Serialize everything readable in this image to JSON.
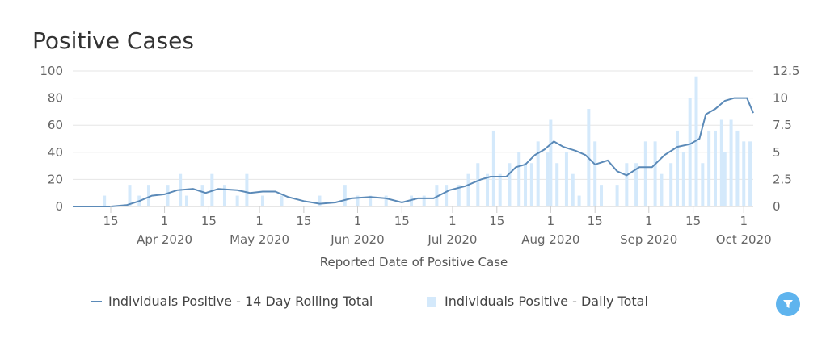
{
  "title": "Positive Cases",
  "legend": {
    "line_label": "Individuals Positive - 14 Day Rolling Total",
    "bar_label": "Individuals Positive - Daily Total"
  },
  "filter_icon": "filter-icon",
  "colors": {
    "line": "#5b8ab8",
    "bars": "#d4e9fb",
    "filter_button": "#5fb4ee"
  },
  "chart_data": {
    "type": "line+bar",
    "xlabel": "Reported Date of Positive Case",
    "x_ticks": [
      {
        "date": "2020-03-15",
        "label": "15",
        "sub": ""
      },
      {
        "date": "2020-04-01",
        "label": "1",
        "sub": "Apr 2020"
      },
      {
        "date": "2020-04-15",
        "label": "15",
        "sub": ""
      },
      {
        "date": "2020-05-01",
        "label": "1",
        "sub": "May 2020"
      },
      {
        "date": "2020-05-15",
        "label": "15",
        "sub": ""
      },
      {
        "date": "2020-06-01",
        "label": "1",
        "sub": "Jun 2020"
      },
      {
        "date": "2020-06-15",
        "label": "15",
        "sub": ""
      },
      {
        "date": "2020-07-01",
        "label": "1",
        "sub": "Jul 2020"
      },
      {
        "date": "2020-07-15",
        "label": "15",
        "sub": ""
      },
      {
        "date": "2020-08-01",
        "label": "1",
        "sub": "Aug 2020"
      },
      {
        "date": "2020-08-15",
        "label": "15",
        "sub": ""
      },
      {
        "date": "2020-09-01",
        "label": "1",
        "sub": "Sep 2020"
      },
      {
        "date": "2020-09-15",
        "label": "15",
        "sub": ""
      },
      {
        "date": "2020-10-01",
        "label": "1",
        "sub": "Oct 2020"
      }
    ],
    "xlim": [
      "2020-03-03",
      "2020-10-04"
    ],
    "y_left": {
      "ylim": [
        0,
        100
      ],
      "ticks": [
        "0",
        "20",
        "40",
        "60",
        "80",
        "100"
      ]
    },
    "y_right": {
      "ylim": [
        0,
        12.5
      ],
      "ticks": [
        "0",
        "2.5",
        "5",
        "7.5",
        "10",
        "12.5"
      ]
    },
    "grid": true,
    "legend_position": "bottom",
    "series": [
      {
        "name": "Individuals Positive - 14 Day Rolling Total",
        "type": "line",
        "axis": "left",
        "points": [
          [
            "2020-03-03",
            0
          ],
          [
            "2020-03-15",
            0
          ],
          [
            "2020-03-20",
            1
          ],
          [
            "2020-03-24",
            4
          ],
          [
            "2020-03-28",
            8
          ],
          [
            "2020-04-01",
            9
          ],
          [
            "2020-04-05",
            12
          ],
          [
            "2020-04-10",
            13
          ],
          [
            "2020-04-14",
            10
          ],
          [
            "2020-04-18",
            13
          ],
          [
            "2020-04-24",
            12
          ],
          [
            "2020-04-28",
            10
          ],
          [
            "2020-05-02",
            11
          ],
          [
            "2020-05-06",
            11
          ],
          [
            "2020-05-10",
            7
          ],
          [
            "2020-05-15",
            4
          ],
          [
            "2020-05-20",
            2
          ],
          [
            "2020-05-25",
            3
          ],
          [
            "2020-05-30",
            6
          ],
          [
            "2020-06-05",
            7
          ],
          [
            "2020-06-10",
            6
          ],
          [
            "2020-06-15",
            3
          ],
          [
            "2020-06-20",
            6
          ],
          [
            "2020-06-25",
            6
          ],
          [
            "2020-06-30",
            12
          ],
          [
            "2020-07-05",
            15
          ],
          [
            "2020-07-10",
            20
          ],
          [
            "2020-07-13",
            22
          ],
          [
            "2020-07-18",
            22
          ],
          [
            "2020-07-21",
            29
          ],
          [
            "2020-07-24",
            31
          ],
          [
            "2020-07-27",
            38
          ],
          [
            "2020-07-30",
            42
          ],
          [
            "2020-08-02",
            48
          ],
          [
            "2020-08-05",
            44
          ],
          [
            "2020-08-09",
            41
          ],
          [
            "2020-08-12",
            38
          ],
          [
            "2020-08-15",
            31
          ],
          [
            "2020-08-19",
            34
          ],
          [
            "2020-08-22",
            26
          ],
          [
            "2020-08-25",
            23
          ],
          [
            "2020-08-29",
            29
          ],
          [
            "2020-09-02",
            29
          ],
          [
            "2020-09-06",
            38
          ],
          [
            "2020-09-10",
            44
          ],
          [
            "2020-09-14",
            46
          ],
          [
            "2020-09-17",
            50
          ],
          [
            "2020-09-19",
            68
          ],
          [
            "2020-09-22",
            72
          ],
          [
            "2020-09-25",
            78
          ],
          [
            "2020-09-28",
            80
          ],
          [
            "2020-10-02",
            80
          ],
          [
            "2020-10-04",
            69
          ]
        ]
      },
      {
        "name": "Individuals Positive - Daily Total",
        "type": "bar",
        "axis": "right",
        "points": [
          [
            "2020-03-13",
            1
          ],
          [
            "2020-03-21",
            2
          ],
          [
            "2020-03-24",
            1
          ],
          [
            "2020-03-27",
            2
          ],
          [
            "2020-04-02",
            2
          ],
          [
            "2020-04-06",
            3
          ],
          [
            "2020-04-08",
            1
          ],
          [
            "2020-04-13",
            2
          ],
          [
            "2020-04-16",
            3
          ],
          [
            "2020-04-20",
            2
          ],
          [
            "2020-04-24",
            1
          ],
          [
            "2020-04-27",
            3
          ],
          [
            "2020-05-02",
            1
          ],
          [
            "2020-05-08",
            1
          ],
          [
            "2020-05-20",
            1
          ],
          [
            "2020-05-28",
            2
          ],
          [
            "2020-06-01",
            1
          ],
          [
            "2020-06-05",
            1
          ],
          [
            "2020-06-10",
            1
          ],
          [
            "2020-06-18",
            1
          ],
          [
            "2020-06-22",
            1
          ],
          [
            "2020-06-26",
            2
          ],
          [
            "2020-06-29",
            2
          ],
          [
            "2020-07-03",
            2
          ],
          [
            "2020-07-06",
            3
          ],
          [
            "2020-07-09",
            4
          ],
          [
            "2020-07-12",
            3
          ],
          [
            "2020-07-14",
            7
          ],
          [
            "2020-07-16",
            3
          ],
          [
            "2020-07-19",
            4
          ],
          [
            "2020-07-22",
            5
          ],
          [
            "2020-07-24",
            4
          ],
          [
            "2020-07-26",
            4
          ],
          [
            "2020-07-28",
            6
          ],
          [
            "2020-07-31",
            5
          ],
          [
            "2020-08-01",
            8
          ],
          [
            "2020-08-03",
            4
          ],
          [
            "2020-08-06",
            5
          ],
          [
            "2020-08-08",
            3
          ],
          [
            "2020-08-10",
            1
          ],
          [
            "2020-08-13",
            9
          ],
          [
            "2020-08-15",
            6
          ],
          [
            "2020-08-17",
            2
          ],
          [
            "2020-08-22",
            2
          ],
          [
            "2020-08-25",
            4
          ],
          [
            "2020-08-28",
            4
          ],
          [
            "2020-08-31",
            6
          ],
          [
            "2020-09-03",
            6
          ],
          [
            "2020-09-05",
            3
          ],
          [
            "2020-09-08",
            4
          ],
          [
            "2020-09-10",
            7
          ],
          [
            "2020-09-12",
            5
          ],
          [
            "2020-09-14",
            10
          ],
          [
            "2020-09-16",
            12
          ],
          [
            "2020-09-18",
            4
          ],
          [
            "2020-09-20",
            7
          ],
          [
            "2020-09-22",
            7
          ],
          [
            "2020-09-24",
            8
          ],
          [
            "2020-09-25",
            5
          ],
          [
            "2020-09-27",
            8
          ],
          [
            "2020-09-29",
            7
          ],
          [
            "2020-10-01",
            6
          ],
          [
            "2020-10-03",
            6
          ]
        ]
      }
    ]
  }
}
